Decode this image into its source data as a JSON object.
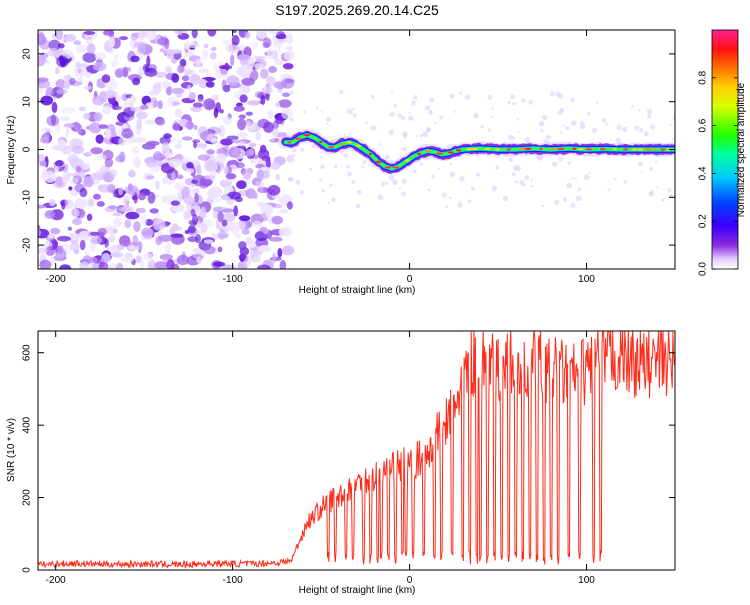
{
  "figure": {
    "title": "S197.2025.269.20.14.C25"
  },
  "colors": {
    "spectrogram_low": "#8a2be2",
    "snr_line": "#ff2a1a",
    "axis": "#000000",
    "background": "#ffffff"
  },
  "chart_data": [
    {
      "type": "heatmap",
      "title": "S197.2025.269.20.14.C25",
      "xlabel": "Height of straight line (km)",
      "ylabel": "Frequency (Hz)",
      "xlim": [
        -210,
        150
      ],
      "ylim": [
        -25,
        25
      ],
      "xticks": [
        -200,
        -100,
        0,
        100
      ],
      "xtick_labels": [
        "-200",
        "-100",
        "0",
        "100"
      ],
      "yticks": [
        -20,
        -10,
        0,
        10,
        20
      ],
      "ytick_labels": [
        "-20",
        "-10",
        "0",
        "10",
        "20"
      ],
      "noise_region_x": [
        -210,
        -67
      ],
      "signal_track": {
        "x": [
          -70,
          -66,
          -62,
          -58,
          -54,
          -50,
          -46,
          -42,
          -38,
          -34,
          -30,
          -26,
          -22,
          -18,
          -14,
          -10,
          -6,
          -2,
          2,
          6,
          10,
          14,
          18,
          22,
          26,
          30,
          40,
          50,
          60,
          70,
          80,
          90,
          100,
          110,
          120,
          130,
          140,
          150
        ],
        "freq": [
          1.5,
          1.5,
          2.5,
          3.0,
          2.5,
          1.5,
          0.5,
          0.5,
          1.2,
          1.5,
          1.0,
          0.0,
          -1.0,
          -2.5,
          -3.5,
          -4.0,
          -3.5,
          -2.5,
          -1.5,
          -0.8,
          -0.3,
          -0.5,
          -1.0,
          -0.8,
          -0.3,
          0.0,
          0.2,
          0.0,
          0.0,
          0.2,
          0.0,
          0.2,
          0.0,
          0.1,
          0.0,
          0.0,
          0.0,
          0.0
        ]
      },
      "colorbar": {
        "label": "Normalized spectral amplitude",
        "range": [
          0,
          1
        ],
        "ticks": [
          0.0,
          0.2,
          0.4,
          0.6,
          0.8
        ],
        "tick_labels": [
          "0.0",
          "0.2",
          "0.4",
          "0.6",
          "0.8"
        ],
        "colormap": "rainbow (purple-blue-cyan-green-yellow-orange-red-magenta)"
      }
    },
    {
      "type": "line",
      "xlabel": "Height of straight line (km)",
      "ylabel": "SNR (10 * v/v)",
      "xlim": [
        -210,
        150
      ],
      "ylim": [
        0,
        660
      ],
      "xticks": [
        -200,
        -100,
        0,
        100
      ],
      "xtick_labels": [
        "-200",
        "-100",
        "0",
        "100"
      ],
      "yticks": [
        0,
        200,
        400,
        600
      ],
      "ytick_labels": [
        "0",
        "200",
        "400",
        "600"
      ],
      "series": [
        {
          "name": "SNR",
          "x": [
            -210,
            -190,
            -170,
            -150,
            -130,
            -110,
            -90,
            -75,
            -67,
            -63,
            -58,
            -52,
            -46,
            -40,
            -34,
            -28,
            -22,
            -16,
            -10,
            -6,
            0,
            6,
            10,
            14,
            18,
            22,
            26,
            30,
            32,
            36,
            40,
            44,
            48,
            52,
            56,
            60,
            64,
            68,
            72,
            76,
            80,
            84,
            88,
            92,
            96,
            100,
            104,
            108,
            112,
            116,
            120,
            124,
            128,
            132,
            136,
            140,
            144,
            150
          ],
          "y": [
            15,
            18,
            16,
            17,
            15,
            18,
            17,
            20,
            25,
            70,
            130,
            160,
            190,
            205,
            230,
            240,
            255,
            265,
            275,
            285,
            300,
            305,
            330,
            360,
            390,
            420,
            465,
            520,
            545,
            575,
            570,
            560,
            555,
            560,
            570,
            560,
            555,
            560,
            575,
            560,
            555,
            550,
            540,
            540,
            545,
            550,
            590,
            595,
            590,
            585,
            590,
            580,
            575,
            570,
            570,
            575,
            580,
            570
          ]
        }
      ],
      "dropouts_x": [
        -46,
        -42,
        -36,
        -32,
        -26,
        -22,
        -18,
        -16,
        -12,
        -8,
        -4,
        -2,
        2,
        8,
        14,
        18,
        24,
        30,
        34,
        38,
        40,
        44,
        48,
        52,
        56,
        60,
        64,
        68,
        72,
        76,
        80,
        84,
        90,
        96,
        104,
        108
      ]
    }
  ]
}
